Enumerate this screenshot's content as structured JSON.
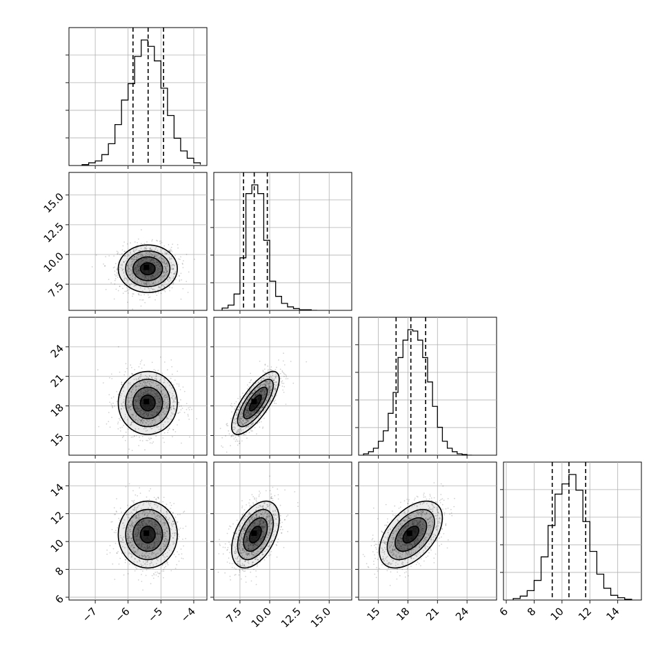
{
  "chart_data": {
    "type": "corner",
    "title": "",
    "n_params": 4,
    "parameters": [
      {
        "label": "",
        "mean": -5.4,
        "sd": 0.45,
        "range": [
          -7.8,
          -3.6
        ],
        "ticks": [
          -7,
          -6,
          -5,
          -4
        ],
        "tick_labels": [
          "−7",
          "−6",
          "−5",
          "−4"
        ],
        "quantiles": [
          -5.85,
          -5.39,
          -4.92
        ]
      },
      {
        "label": "",
        "mean": 8.8,
        "sd": 1.0,
        "range": [
          5.3,
          16.9
        ],
        "ticks": [
          7.5,
          10.0,
          12.5,
          15.0
        ],
        "tick_labels": [
          "7.5",
          "10.0",
          "12.5",
          "15.0"
        ],
        "quantiles": [
          7.8,
          8.7,
          9.8
        ]
      },
      {
        "label": "",
        "mean": 18.3,
        "sd": 1.6,
        "range": [
          13.0,
          27.0
        ],
        "ticks": [
          15,
          18,
          21,
          24
        ],
        "tick_labels": [
          "15",
          "18",
          "21",
          "24"
        ],
        "quantiles": [
          16.8,
          18.3,
          19.8
        ]
      },
      {
        "label": "",
        "mean": 10.5,
        "sd": 1.2,
        "range": [
          5.8,
          15.7
        ],
        "ticks": [
          6,
          8,
          10,
          12,
          14
        ],
        "tick_labels": [
          "6",
          "8",
          "10",
          "12",
          "14"
        ],
        "quantiles": [
          9.3,
          10.5,
          11.7
        ]
      }
    ],
    "correlations": [
      [
        1,
        0.0,
        0.0,
        0.0
      ],
      [
        0.0,
        1,
        0.75,
        0.45
      ],
      [
        0.0,
        0.75,
        1,
        0.5
      ],
      [
        0.0,
        0.45,
        0.5,
        1
      ]
    ],
    "grid": true,
    "histograms": [
      {
        "bins": [
          -7.4,
          -7.2,
          -7.0,
          -6.8,
          -6.6,
          -6.4,
          -6.2,
          -6.0,
          -5.8,
          -5.6,
          -5.4,
          -5.2,
          -5.0,
          -4.8,
          -4.6,
          -4.4,
          -4.2,
          -4.0,
          -3.8
        ],
        "counts": [
          1,
          3,
          5,
          12,
          24,
          45,
          72,
          90,
          120,
          138,
          131,
          115,
          85,
          55,
          30,
          16,
          8,
          3,
          1
        ]
      },
      {
        "bins": [
          6.0,
          6.5,
          7.0,
          7.5,
          8.0,
          8.5,
          9.0,
          9.5,
          10.0,
          10.5,
          11.0,
          11.5,
          12.0,
          12.5,
          13.0,
          13.5,
          14.0
        ],
        "counts": [
          4,
          9,
          28,
          90,
          200,
          215,
          200,
          120,
          50,
          24,
          12,
          6,
          3,
          1,
          1,
          0
        ]
      },
      {
        "bins": [
          13.5,
          14.0,
          14.5,
          15.0,
          15.5,
          16.0,
          16.5,
          17.0,
          17.5,
          18.0,
          18.5,
          19.0,
          19.5,
          20.0,
          20.5,
          21.0,
          21.5,
          22.0,
          22.5,
          23.0,
          23.5,
          24.0,
          24.5
        ],
        "counts": [
          2,
          5,
          10,
          20,
          35,
          60,
          90,
          140,
          165,
          180,
          178,
          165,
          140,
          105,
          70,
          40,
          20,
          10,
          5,
          2,
          1,
          0
        ]
      },
      {
        "bins": [
          6.5,
          7.0,
          7.5,
          8.0,
          8.5,
          9.0,
          9.5,
          10.0,
          10.5,
          11.0,
          11.5,
          12.0,
          12.5,
          13.0,
          13.5,
          14.0,
          14.5,
          15.0
        ],
        "counts": [
          2,
          5,
          12,
          25,
          55,
          95,
          135,
          148,
          160,
          140,
          100,
          62,
          33,
          15,
          6,
          3,
          1
        ]
      }
    ],
    "contour_levels": [
      0.5,
      1.0,
      1.5,
      2.0
    ]
  },
  "colors": {
    "points": "#000000",
    "density": "#000000",
    "lines": "#000000",
    "grid": "#b0b0b0"
  }
}
